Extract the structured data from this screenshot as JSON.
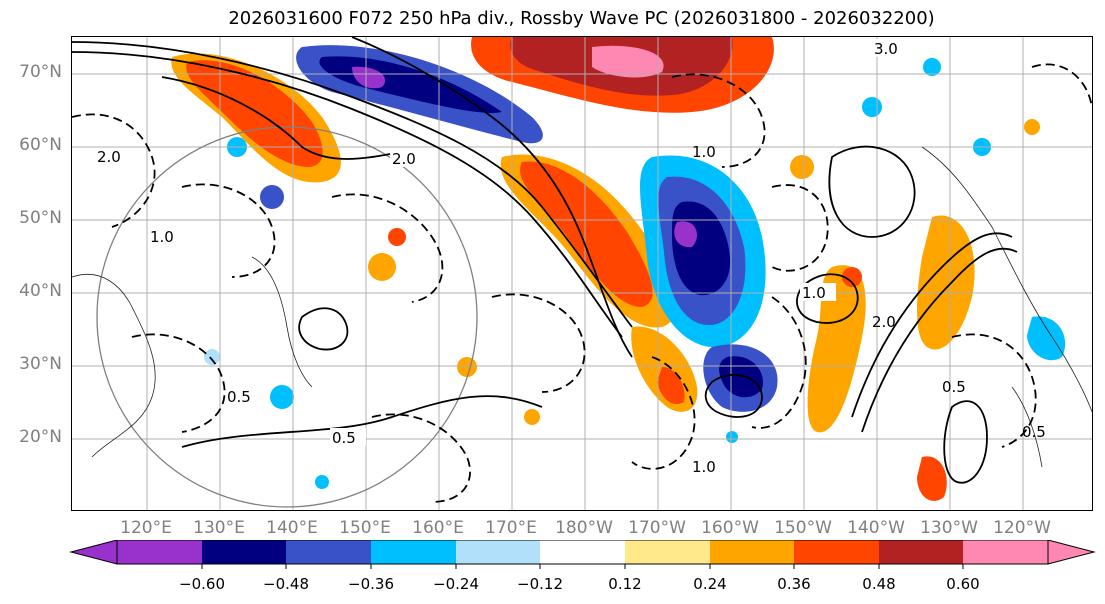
{
  "title": "2026031600 F072 250 hPa div., Rossby Wave PC (2026031800 - 2026032200)",
  "lat_ticks": [
    "70°N",
    "60°N",
    "50°N",
    "40°N",
    "30°N",
    "20°N"
  ],
  "lon_ticks": [
    "120°E",
    "130°E",
    "140°E",
    "150°E",
    "160°E",
    "170°E",
    "180°W",
    "170°W",
    "160°W",
    "150°W",
    "140°W",
    "130°W",
    "120°W"
  ],
  "contour_labels": [
    "3.0",
    "2.0",
    "2.0",
    "1.0",
    "1.0",
    "1.0",
    "0.5",
    "0.5",
    "0.5",
    "0.5",
    "1.0",
    "2.0"
  ],
  "colorbar": {
    "tick_labels": [
      "−0.60",
      "−0.48",
      "−0.36",
      "−0.24",
      "−0.12",
      "0.12",
      "0.24",
      "0.36",
      "0.48",
      "0.60"
    ],
    "colors": [
      "#9932CC",
      "#000080",
      "#3A52C8",
      "#00BFFF",
      "#B0E0FA",
      "#FFFFFF",
      "#FFE98A",
      "#FFA500",
      "#FF4500",
      "#B22222",
      "#FF88B3"
    ]
  }
}
